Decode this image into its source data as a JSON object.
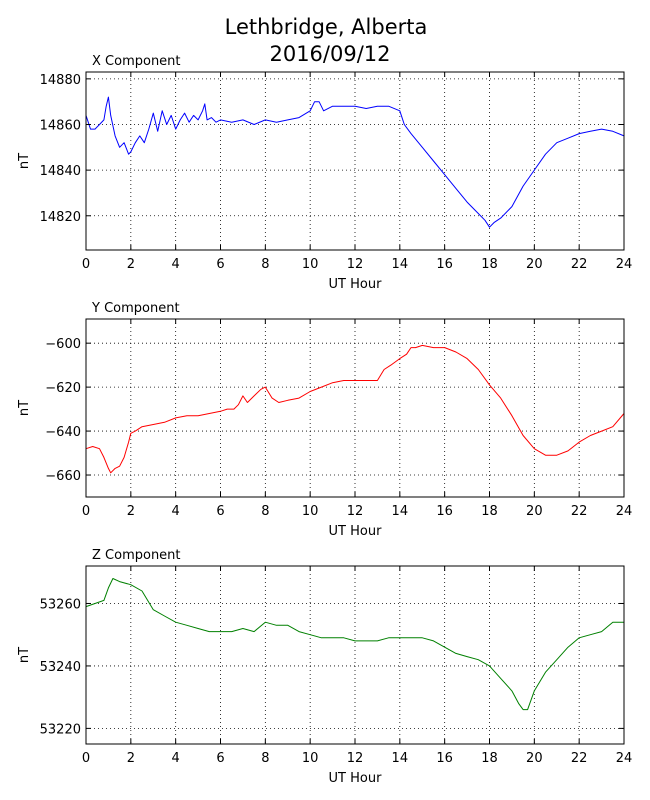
{
  "figure": {
    "title_line1": "Lethbridge, Alberta",
    "title_line2": "2016/09/12"
  },
  "chart_data": [
    {
      "type": "line",
      "title": "X Component",
      "xlabel": "UT Hour",
      "ylabel": "nT",
      "xlim": [
        0,
        24
      ],
      "ylim": [
        14805,
        14883
      ],
      "xticks": [
        0,
        2,
        4,
        6,
        8,
        10,
        12,
        14,
        16,
        18,
        20,
        22,
        24
      ],
      "yticks": [
        14820,
        14840,
        14860,
        14880
      ],
      "grid": true,
      "color": "#0000ff",
      "series": [
        {
          "x": [
            0,
            0.2,
            0.4,
            0.6,
            0.8,
            0.9,
            1.0,
            1.1,
            1.3,
            1.5,
            1.7,
            1.9,
            2.0,
            2.2,
            2.4,
            2.6,
            2.8,
            3.0,
            3.2,
            3.4,
            3.6,
            3.8,
            4.0,
            4.2,
            4.4,
            4.6,
            4.8,
            5.0,
            5.2,
            5.3,
            5.4,
            5.6,
            5.8,
            6.0,
            6.5,
            7.0,
            7.5,
            8.0,
            8.5,
            9.0,
            9.5,
            10.0,
            10.2,
            10.4,
            10.6,
            11.0,
            11.5,
            12.0,
            12.5,
            13.0,
            13.5,
            14.0,
            14.2,
            14.5,
            15.0,
            15.5,
            16.0,
            16.5,
            17.0,
            17.5,
            17.8,
            18.0,
            18.2,
            18.5,
            19.0,
            19.5,
            20.0,
            20.5,
            21.0,
            21.5,
            22.0,
            22.5,
            23.0,
            23.5,
            24.0
          ],
          "y": [
            14864,
            14858,
            14858,
            14860,
            14862,
            14868,
            14872,
            14864,
            14855,
            14850,
            14852,
            14847,
            14848,
            14852,
            14855,
            14852,
            14858,
            14865,
            14857,
            14866,
            14860,
            14864,
            14858,
            14862,
            14865,
            14861,
            14864,
            14862,
            14866,
            14869,
            14862,
            14863,
            14861,
            14862,
            14861,
            14862,
            14860,
            14862,
            14861,
            14862,
            14863,
            14866,
            14870,
            14870,
            14866,
            14868,
            14868,
            14868,
            14867,
            14868,
            14868,
            14866,
            14860,
            14856,
            14850,
            14844,
            14838,
            14832,
            14826,
            14821,
            14818,
            14815,
            14817,
            14819,
            14824,
            14833,
            14840,
            14847,
            14852,
            14854,
            14856,
            14857,
            14858,
            14857,
            14855
          ]
        }
      ]
    },
    {
      "type": "line",
      "title": "Y Component",
      "xlabel": "UT Hour",
      "ylabel": "nT",
      "xlim": [
        0,
        24
      ],
      "ylim": [
        -670,
        -589
      ],
      "xticks": [
        0,
        2,
        4,
        6,
        8,
        10,
        12,
        14,
        16,
        18,
        20,
        22,
        24
      ],
      "yticks": [
        -660,
        -640,
        -620,
        -600
      ],
      "grid": true,
      "color": "#ff0000",
      "series": [
        {
          "x": [
            0,
            0.3,
            0.6,
            0.8,
            1.0,
            1.1,
            1.3,
            1.5,
            1.7,
            1.9,
            2.0,
            2.2,
            2.5,
            3.0,
            3.5,
            4.0,
            4.5,
            5.0,
            5.5,
            6.0,
            6.3,
            6.6,
            6.8,
            7.0,
            7.2,
            7.5,
            7.8,
            8.0,
            8.3,
            8.6,
            9.0,
            9.5,
            10.0,
            10.5,
            11.0,
            11.5,
            12.0,
            12.5,
            13.0,
            13.3,
            13.6,
            14.0,
            14.3,
            14.5,
            14.7,
            15.0,
            15.5,
            16.0,
            16.5,
            17.0,
            17.5,
            18.0,
            18.5,
            19.0,
            19.5,
            20.0,
            20.5,
            21.0,
            21.5,
            22.0,
            22.5,
            23.0,
            23.5,
            24.0
          ],
          "y": [
            -648,
            -647,
            -648,
            -652,
            -657,
            -659,
            -657,
            -656,
            -652,
            -645,
            -641,
            -640,
            -638,
            -637,
            -636,
            -634,
            -633,
            -633,
            -632,
            -631,
            -630,
            -630,
            -628,
            -624,
            -627,
            -624,
            -621,
            -620,
            -625,
            -627,
            -626,
            -625,
            -622,
            -620,
            -618,
            -617,
            -617,
            -617,
            -617,
            -612,
            -610,
            -607,
            -605,
            -602,
            -602,
            -601,
            -602,
            -602,
            -604,
            -607,
            -612,
            -619,
            -625,
            -633,
            -642,
            -648,
            -651,
            -651,
            -649,
            -645,
            -642,
            -640,
            -638,
            -632
          ]
        }
      ]
    },
    {
      "type": "line",
      "title": "Z Component",
      "xlabel": "UT Hour",
      "ylabel": "nT",
      "xlim": [
        0,
        24
      ],
      "ylim": [
        53215,
        53272
      ],
      "xticks": [
        0,
        2,
        4,
        6,
        8,
        10,
        12,
        14,
        16,
        18,
        20,
        22,
        24
      ],
      "yticks": [
        53220,
        53240,
        53260
      ],
      "grid": true,
      "color": "#008000",
      "series": [
        {
          "x": [
            0,
            0.4,
            0.8,
            1.0,
            1.2,
            1.5,
            2.0,
            2.5,
            3.0,
            3.5,
            4.0,
            4.5,
            5.0,
            5.5,
            6.0,
            6.5,
            7.0,
            7.5,
            8.0,
            8.5,
            9.0,
            9.5,
            10.0,
            10.5,
            11.0,
            11.5,
            12.0,
            12.5,
            13.0,
            13.5,
            14.0,
            14.5,
            15.0,
            15.5,
            16.0,
            16.5,
            17.0,
            17.5,
            18.0,
            18.5,
            19.0,
            19.3,
            19.5,
            19.7,
            20.0,
            20.5,
            21.0,
            21.5,
            22.0,
            22.5,
            23.0,
            23.5,
            24.0
          ],
          "y": [
            53259,
            53260,
            53261,
            53265,
            53268,
            53267,
            53266,
            53264,
            53258,
            53256,
            53254,
            53253,
            53252,
            53251,
            53251,
            53251,
            53252,
            53251,
            53254,
            53253,
            53253,
            53251,
            53250,
            53249,
            53249,
            53249,
            53248,
            53248,
            53248,
            53249,
            53249,
            53249,
            53249,
            53248,
            53246,
            53244,
            53243,
            53242,
            53240,
            53236,
            53232,
            53228,
            53226,
            53226,
            53232,
            53238,
            53242,
            53246,
            53249,
            53250,
            53251,
            53254,
            53254
          ]
        }
      ]
    }
  ]
}
